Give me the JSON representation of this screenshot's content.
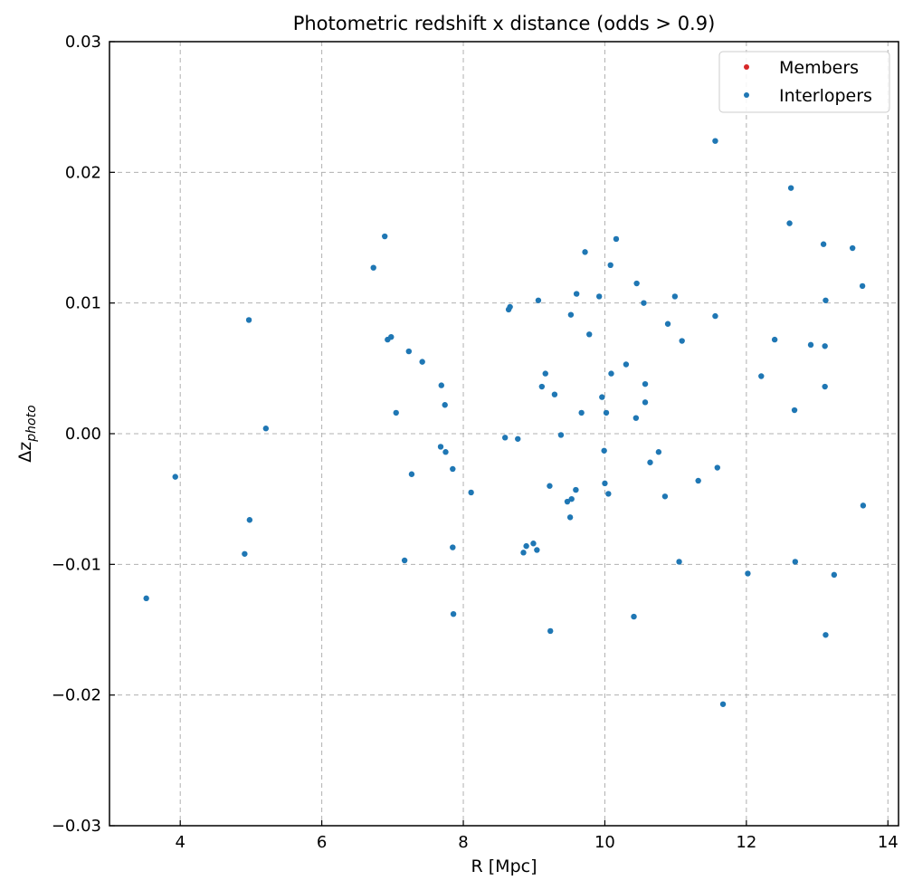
{
  "chart_data": {
    "type": "scatter",
    "title": "Photometric redshift x distance (odds > 0.9)",
    "xlabel": "R [Mpc]",
    "ylabel": {
      "base": "Δz",
      "sub": "photo"
    },
    "xlim": [
      3.0,
      14.15
    ],
    "ylim": [
      -0.03,
      0.03
    ],
    "xticks": [
      4,
      6,
      8,
      10,
      12,
      14
    ],
    "yticks": [
      -0.03,
      -0.02,
      -0.01,
      0.0,
      0.01,
      0.02,
      0.03
    ],
    "xtick_labels": [
      "4",
      "6",
      "8",
      "10",
      "12",
      "14"
    ],
    "ytick_labels": [
      "−0.03",
      "−0.02",
      "−0.01",
      "0.00",
      "0.01",
      "0.02",
      "0.03"
    ],
    "grid": true,
    "legend_position": "top-right",
    "series": [
      {
        "name": "Members",
        "color": "#d62728",
        "points": []
      },
      {
        "name": "Interlopers",
        "color": "#1f77b4",
        "points": [
          [
            3.52,
            -0.0126
          ],
          [
            3.93,
            -0.0033
          ],
          [
            4.91,
            -0.0092
          ],
          [
            4.97,
            0.0087
          ],
          [
            4.98,
            -0.0066
          ],
          [
            5.21,
            0.0004
          ],
          [
            6.73,
            0.0127
          ],
          [
            6.89,
            0.0151
          ],
          [
            6.93,
            0.0072
          ],
          [
            6.98,
            0.0074
          ],
          [
            7.05,
            0.0016
          ],
          [
            7.17,
            -0.0097
          ],
          [
            7.23,
            0.0063
          ],
          [
            7.27,
            -0.0031
          ],
          [
            7.42,
            0.0055
          ],
          [
            7.68,
            -0.001
          ],
          [
            7.69,
            0.0037
          ],
          [
            7.74,
            0.0022
          ],
          [
            7.75,
            -0.0014
          ],
          [
            7.85,
            -0.0027
          ],
          [
            7.85,
            -0.0087
          ],
          [
            7.86,
            -0.0138
          ],
          [
            8.11,
            -0.0045
          ],
          [
            8.59,
            -0.0003
          ],
          [
            8.64,
            0.0095
          ],
          [
            8.66,
            0.0097
          ],
          [
            8.77,
            -0.0004
          ],
          [
            8.85,
            -0.0091
          ],
          [
            8.89,
            -0.0086
          ],
          [
            8.99,
            -0.0084
          ],
          [
            9.04,
            -0.0089
          ],
          [
            9.06,
            0.0102
          ],
          [
            9.11,
            0.0036
          ],
          [
            9.16,
            0.0046
          ],
          [
            9.22,
            -0.004
          ],
          [
            9.23,
            -0.0151
          ],
          [
            9.29,
            0.003
          ],
          [
            9.38,
            -0.0001
          ],
          [
            9.47,
            -0.0052
          ],
          [
            9.51,
            -0.0064
          ],
          [
            9.52,
            0.0091
          ],
          [
            9.53,
            -0.005
          ],
          [
            9.59,
            -0.0043
          ],
          [
            9.6,
            0.0107
          ],
          [
            9.67,
            0.0016
          ],
          [
            9.72,
            0.0139
          ],
          [
            9.78,
            0.0076
          ],
          [
            9.92,
            0.0105
          ],
          [
            9.96,
            0.0028
          ],
          [
            9.99,
            -0.0013
          ],
          [
            10.0,
            -0.0038
          ],
          [
            10.02,
            0.0016
          ],
          [
            10.05,
            -0.0046
          ],
          [
            10.08,
            0.0129
          ],
          [
            10.09,
            0.0046
          ],
          [
            10.16,
            0.0149
          ],
          [
            10.3,
            0.0053
          ],
          [
            10.41,
            -0.014
          ],
          [
            10.44,
            0.0012
          ],
          [
            10.45,
            0.0115
          ],
          [
            10.55,
            0.01
          ],
          [
            10.57,
            0.0038
          ],
          [
            10.57,
            0.0024
          ],
          [
            10.64,
            -0.0022
          ],
          [
            10.76,
            -0.0014
          ],
          [
            10.85,
            -0.0048
          ],
          [
            10.89,
            0.0084
          ],
          [
            10.99,
            0.0105
          ],
          [
            11.05,
            -0.0098
          ],
          [
            11.09,
            0.0071
          ],
          [
            11.32,
            -0.0036
          ],
          [
            11.56,
            0.0224
          ],
          [
            11.56,
            0.009
          ],
          [
            11.59,
            -0.0026
          ],
          [
            11.67,
            -0.0207
          ],
          [
            12.02,
            -0.0107
          ],
          [
            12.21,
            0.0044
          ],
          [
            12.4,
            0.0072
          ],
          [
            12.61,
            0.0161
          ],
          [
            12.63,
            0.0188
          ],
          [
            12.68,
            0.0018
          ],
          [
            12.69,
            -0.0098
          ],
          [
            12.91,
            0.0068
          ],
          [
            13.09,
            0.0145
          ],
          [
            13.11,
            0.0067
          ],
          [
            13.11,
            0.0036
          ],
          [
            13.12,
            0.0102
          ],
          [
            13.12,
            -0.0154
          ],
          [
            13.24,
            -0.0108
          ],
          [
            13.5,
            0.0142
          ],
          [
            13.64,
            0.0113
          ],
          [
            13.65,
            -0.0055
          ]
        ]
      }
    ]
  }
}
